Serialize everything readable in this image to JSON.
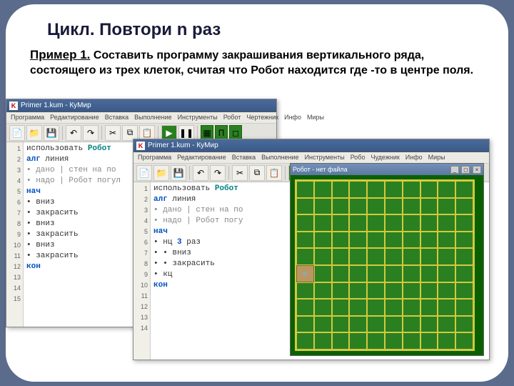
{
  "slide": {
    "title": "Цикл. Повтори n раз",
    "example_label": "Пример 1.",
    "example_text": "Составить программу закрашивания вертикального ряда, состоящего из трех клеток, считая что Робот находится где -то в центре поля."
  },
  "colors": {
    "slide_bg": "#ffffff",
    "page_bg": "#5a6b8c",
    "grid_line": "#d4c840",
    "grid_fill": "#2a8020",
    "grid_dark": "#0a6000"
  },
  "window1": {
    "title": "Primer 1.kum - КуМир",
    "menus": [
      "Программа",
      "Редактирование",
      "Вставка",
      "Выполнение",
      "Инструменты",
      "Робот",
      "Чертежник",
      "Инфо",
      "Миры"
    ],
    "lines": [
      "1",
      "2",
      "3",
      "4",
      "5",
      "6",
      "7",
      "8",
      "9",
      "10",
      "11",
      "12",
      "13",
      "14",
      "15"
    ],
    "code": [
      {
        "t": "использовать ",
        "c": ""
      },
      {
        "t": "Робот",
        "c": "kw-teal",
        "br": 1
      },
      {
        "t": "алг ",
        "c": "kw-blue"
      },
      {
        "t": "линия",
        "c": "",
        "br": 1
      },
      {
        "t": "• дано | стен на по",
        "c": "kw-gray",
        "br": 1
      },
      {
        "t": "• надо | Робот погул",
        "c": "kw-gray",
        "br": 1
      },
      {
        "t": "нач",
        "c": "kw-blue",
        "br": 1
      },
      {
        "t": "• вниз",
        "c": "",
        "br": 1
      },
      {
        "t": "• закрасить",
        "c": "",
        "br": 1
      },
      {
        "t": "• вниз",
        "c": "",
        "br": 1
      },
      {
        "t": "• закрасить",
        "c": "",
        "br": 1
      },
      {
        "t": "• вниз",
        "c": "",
        "br": 1
      },
      {
        "t": "• закрасить",
        "c": "",
        "br": 1
      },
      {
        "t": "кон",
        "c": "kw-blue",
        "br": 1
      }
    ]
  },
  "window2": {
    "title": "Primer 1.kum - КуМир",
    "menus": [
      "Программа",
      "Редактирование",
      "Вставка",
      "Выполнение",
      "Инструменты",
      "Робо",
      "Чудежник",
      "Инфо",
      "Миры"
    ],
    "lines": [
      "1",
      "2",
      "3",
      "4",
      "5",
      "6",
      "7",
      "8",
      "9",
      "10",
      "11",
      "12",
      "13",
      "14"
    ],
    "code": [
      {
        "t": "использовать ",
        "c": ""
      },
      {
        "t": "Робот",
        "c": "kw-teal",
        "br": 1
      },
      {
        "t": "алг ",
        "c": "kw-blue"
      },
      {
        "t": "линия",
        "c": "",
        "br": 1
      },
      {
        "t": "• дано | стен на по",
        "c": "kw-gray",
        "br": 1
      },
      {
        "t": "• надо | Робот погу",
        "c": "kw-gray",
        "br": 1
      },
      {
        "t": "нач",
        "c": "kw-blue",
        "br": 1
      },
      {
        "t": "• нц ",
        "c": ""
      },
      {
        "t": "3",
        "c": "kw-blue"
      },
      {
        "t": " раз",
        "c": "",
        "br": 1
      },
      {
        "t": "• • вниз",
        "c": "",
        "br": 1
      },
      {
        "t": "• • закрасить",
        "c": "",
        "br": 1
      },
      {
        "t": "• кц",
        "c": "",
        "br": 1
      },
      {
        "t": "кон",
        "c": "kw-blue",
        "br": 1
      }
    ]
  },
  "robot_window": {
    "title": "Робот - нет файла",
    "robot_pos": {
      "row": 5,
      "col": 0
    },
    "grid_cols": 10,
    "grid_rows": 10
  },
  "toolbar_icons": [
    {
      "name": "file-icon",
      "glyph": "📄"
    },
    {
      "name": "folder-icon",
      "glyph": "📁"
    },
    {
      "name": "save-icon",
      "glyph": "💾"
    },
    {
      "name": "undo-icon",
      "glyph": "↶"
    },
    {
      "name": "redo-icon",
      "glyph": "↷"
    },
    {
      "name": "cut-icon",
      "glyph": "✂"
    },
    {
      "name": "copy-icon",
      "glyph": "⧉"
    },
    {
      "name": "paste-icon",
      "glyph": "📋"
    },
    {
      "name": "play-icon",
      "glyph": "▶",
      "cls": "tb-green"
    },
    {
      "name": "step-icon",
      "glyph": "❚❚"
    },
    {
      "name": "grid-icon",
      "glyph": "▦",
      "cls": "tb-green-small"
    },
    {
      "name": "run-icon",
      "glyph": "П",
      "cls": "tb-green-small"
    },
    {
      "name": "sq-icon",
      "glyph": "◻",
      "cls": "tb-green-small"
    }
  ]
}
